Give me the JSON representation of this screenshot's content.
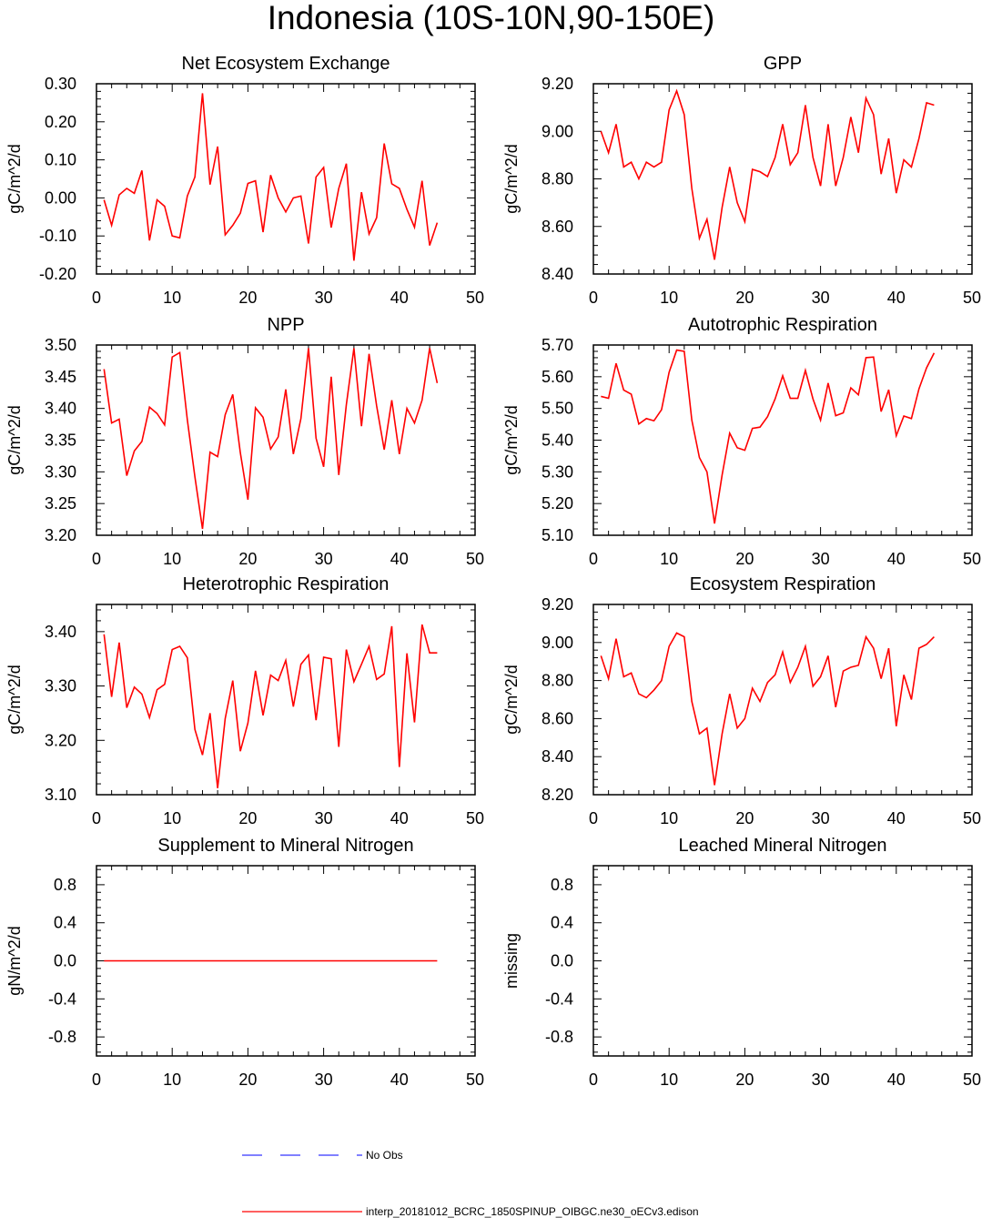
{
  "page_title": "Indonesia (10S-10N,90-150E)",
  "legend": {
    "obs_label": "No Obs",
    "model_label": "interp_20181012_BCRC_1850SPINUP_OIBGC.ne30_oECv3.edison",
    "obs_color": "#0000ff",
    "model_color": "#ff0000"
  },
  "chart_data": [
    {
      "type": "line",
      "title": "Net Ecosystem Exchange",
      "ylabel": "gC/m^2/d",
      "xlim": [
        0,
        50
      ],
      "ylim": [
        -0.2,
        0.3
      ],
      "x_ticks": [
        0,
        10,
        20,
        30,
        40,
        50
      ],
      "y_ticks": [
        -0.2,
        -0.1,
        0.0,
        0.1,
        0.2,
        0.3
      ],
      "y_tick_labels": [
        "-0.20",
        "-0.10",
        "0.00",
        "0.10",
        "0.20",
        "0.30"
      ],
      "x_tick_labels": [
        "0",
        "10",
        "20",
        "30",
        "40",
        "50"
      ],
      "series": [
        {
          "color": "#ff0000",
          "x": [
            1,
            2,
            3,
            4,
            5,
            6,
            7,
            8,
            9,
            10,
            11,
            12,
            13,
            14,
            15,
            16,
            17,
            18,
            19,
            20,
            21,
            22,
            23,
            24,
            25,
            26,
            27,
            28,
            29,
            30,
            31,
            32,
            33,
            34,
            35,
            36,
            37,
            38,
            39,
            40,
            41,
            42,
            43,
            44,
            45
          ],
          "values": [
            -0.005,
            -0.072,
            0.008,
            0.025,
            0.012,
            0.072,
            -0.112,
            -0.005,
            -0.022,
            -0.1,
            -0.105,
            0.005,
            0.055,
            0.275,
            0.035,
            0.135,
            -0.097,
            -0.072,
            -0.04,
            0.038,
            0.045,
            -0.09,
            0.06,
            0.0,
            -0.037,
            0.0,
            0.005,
            -0.12,
            0.055,
            0.08,
            -0.078,
            0.025,
            0.09,
            -0.165,
            0.015,
            -0.095,
            -0.052,
            0.143,
            0.037,
            0.025,
            -0.03,
            -0.077,
            0.045,
            -0.125,
            -0.065
          ]
        }
      ]
    },
    {
      "type": "line",
      "title": "GPP",
      "ylabel": "gC/m^2/d",
      "xlim": [
        0,
        50
      ],
      "ylim": [
        8.4,
        9.2
      ],
      "x_ticks": [
        0,
        10,
        20,
        30,
        40,
        50
      ],
      "y_ticks": [
        8.4,
        8.6,
        8.8,
        9.0,
        9.2
      ],
      "y_tick_labels": [
        "8.40",
        "8.60",
        "8.80",
        "9.00",
        "9.20"
      ],
      "x_tick_labels": [
        "0",
        "10",
        "20",
        "30",
        "40",
        "50"
      ],
      "series": [
        {
          "color": "#ff0000",
          "x": [
            1,
            2,
            3,
            4,
            5,
            6,
            7,
            8,
            9,
            10,
            11,
            12,
            13,
            14,
            15,
            16,
            17,
            18,
            19,
            20,
            21,
            22,
            23,
            24,
            25,
            26,
            27,
            28,
            29,
            30,
            31,
            32,
            33,
            34,
            35,
            36,
            37,
            38,
            39,
            40,
            41,
            42,
            43,
            44,
            45
          ],
          "values": [
            9.0,
            8.91,
            9.03,
            8.85,
            8.87,
            8.8,
            8.87,
            8.85,
            8.87,
            9.09,
            9.17,
            9.07,
            8.76,
            8.55,
            8.63,
            8.46,
            8.68,
            8.85,
            8.7,
            8.62,
            8.84,
            8.83,
            8.81,
            8.89,
            9.03,
            8.86,
            8.91,
            9.11,
            8.89,
            8.77,
            9.03,
            8.77,
            8.89,
            9.06,
            8.91,
            9.14,
            9.07,
            8.82,
            8.97,
            8.74,
            8.88,
            8.85,
            8.97,
            9.12,
            9.11
          ]
        }
      ]
    },
    {
      "type": "line",
      "title": "NPP",
      "ylabel": "gC/m^2/d",
      "xlim": [
        0,
        50
      ],
      "ylim": [
        3.2,
        3.5
      ],
      "x_ticks": [
        0,
        10,
        20,
        30,
        40,
        50
      ],
      "y_ticks": [
        3.2,
        3.25,
        3.3,
        3.35,
        3.4,
        3.45,
        3.5
      ],
      "y_tick_labels": [
        "3.20",
        "3.25",
        "3.30",
        "3.35",
        "3.40",
        "3.45",
        "3.50"
      ],
      "x_tick_labels": [
        "0",
        "10",
        "20",
        "30",
        "40",
        "50"
      ],
      "series": [
        {
          "color": "#ff0000",
          "x": [
            1,
            2,
            3,
            4,
            5,
            6,
            7,
            8,
            9,
            10,
            11,
            12,
            13,
            14,
            15,
            16,
            17,
            18,
            19,
            20,
            21,
            22,
            23,
            24,
            25,
            26,
            27,
            28,
            29,
            30,
            31,
            32,
            33,
            34,
            35,
            36,
            37,
            38,
            39,
            40,
            41,
            42,
            43,
            44,
            45
          ],
          "values": [
            3.462,
            3.377,
            3.383,
            3.294,
            3.333,
            3.348,
            3.402,
            3.392,
            3.374,
            3.481,
            3.488,
            3.382,
            3.292,
            3.21,
            3.331,
            3.324,
            3.39,
            3.422,
            3.33,
            3.256,
            3.401,
            3.386,
            3.336,
            3.355,
            3.43,
            3.328,
            3.384,
            3.495,
            3.353,
            3.308,
            3.45,
            3.295,
            3.406,
            3.495,
            3.372,
            3.486,
            3.404,
            3.335,
            3.413,
            3.328,
            3.4,
            3.377,
            3.413,
            3.495,
            3.44
          ]
        }
      ]
    },
    {
      "type": "line",
      "title": "Autotrophic Respiration",
      "ylabel": "gC/m^2/d",
      "xlim": [
        0,
        50
      ],
      "ylim": [
        5.1,
        5.7
      ],
      "x_ticks": [
        0,
        10,
        20,
        30,
        40,
        50
      ],
      "y_ticks": [
        5.1,
        5.2,
        5.3,
        5.4,
        5.5,
        5.6,
        5.7
      ],
      "y_tick_labels": [
        "5.10",
        "5.20",
        "5.30",
        "5.40",
        "5.50",
        "5.60",
        "5.70"
      ],
      "x_tick_labels": [
        "0",
        "10",
        "20",
        "30",
        "40",
        "50"
      ],
      "series": [
        {
          "color": "#ff0000",
          "x": [
            1,
            2,
            3,
            4,
            5,
            6,
            7,
            8,
            9,
            10,
            11,
            12,
            13,
            14,
            15,
            16,
            17,
            18,
            19,
            20,
            21,
            22,
            23,
            24,
            25,
            26,
            27,
            28,
            29,
            30,
            31,
            32,
            33,
            34,
            35,
            36,
            37,
            38,
            39,
            40,
            41,
            42,
            43,
            44,
            45
          ],
          "values": [
            5.538,
            5.532,
            5.642,
            5.558,
            5.545,
            5.451,
            5.468,
            5.461,
            5.496,
            5.614,
            5.684,
            5.68,
            5.463,
            5.345,
            5.3,
            5.137,
            5.29,
            5.422,
            5.376,
            5.368,
            5.437,
            5.441,
            5.474,
            5.53,
            5.603,
            5.532,
            5.532,
            5.62,
            5.53,
            5.463,
            5.58,
            5.477,
            5.486,
            5.565,
            5.543,
            5.66,
            5.662,
            5.49,
            5.559,
            5.414,
            5.476,
            5.468,
            5.562,
            5.628,
            5.675
          ]
        }
      ]
    },
    {
      "type": "line",
      "title": "Heterotrophic Respiration",
      "ylabel": "gC/m^2/d",
      "xlim": [
        0,
        50
      ],
      "ylim": [
        3.1,
        3.45
      ],
      "x_ticks": [
        0,
        10,
        20,
        30,
        40,
        50
      ],
      "y_ticks": [
        3.1,
        3.2,
        3.3,
        3.4
      ],
      "y_tick_labels": [
        "3.10",
        "3.20",
        "3.30",
        "3.40"
      ],
      "x_tick_labels": [
        "0",
        "10",
        "20",
        "30",
        "40",
        "50"
      ],
      "series": [
        {
          "color": "#ff0000",
          "x": [
            1,
            2,
            3,
            4,
            5,
            6,
            7,
            8,
            9,
            10,
            11,
            12,
            13,
            14,
            15,
            16,
            17,
            18,
            19,
            20,
            21,
            22,
            23,
            24,
            25,
            26,
            27,
            28,
            29,
            30,
            31,
            32,
            33,
            34,
            35,
            36,
            37,
            38,
            39,
            40,
            41,
            42,
            43,
            44,
            45
          ],
          "values": [
            3.395,
            3.28,
            3.38,
            3.26,
            3.298,
            3.285,
            3.242,
            3.293,
            3.303,
            3.367,
            3.373,
            3.352,
            3.22,
            3.173,
            3.25,
            3.112,
            3.24,
            3.31,
            3.18,
            3.232,
            3.328,
            3.246,
            3.32,
            3.31,
            3.347,
            3.262,
            3.34,
            3.357,
            3.237,
            3.353,
            3.35,
            3.188,
            3.367,
            3.308,
            3.34,
            3.373,
            3.312,
            3.322,
            3.41,
            3.151,
            3.36,
            3.233,
            3.413,
            3.361,
            3.361
          ]
        }
      ]
    },
    {
      "type": "line",
      "title": "Ecosystem Respiration",
      "ylabel": "gC/m^2/d",
      "xlim": [
        0,
        50
      ],
      "ylim": [
        8.2,
        9.2
      ],
      "x_ticks": [
        0,
        10,
        20,
        30,
        40,
        50
      ],
      "y_ticks": [
        8.2,
        8.4,
        8.6,
        8.8,
        9.0,
        9.2
      ],
      "y_tick_labels": [
        "8.20",
        "8.40",
        "8.60",
        "8.80",
        "9.00",
        "9.20"
      ],
      "x_tick_labels": [
        "0",
        "10",
        "20",
        "30",
        "40",
        "50"
      ],
      "series": [
        {
          "color": "#ff0000",
          "x": [
            1,
            2,
            3,
            4,
            5,
            6,
            7,
            8,
            9,
            10,
            11,
            12,
            13,
            14,
            15,
            16,
            17,
            18,
            19,
            20,
            21,
            22,
            23,
            24,
            25,
            26,
            27,
            28,
            29,
            30,
            31,
            32,
            33,
            34,
            35,
            36,
            37,
            38,
            39,
            40,
            41,
            42,
            43,
            44,
            45
          ],
          "values": [
            8.93,
            8.81,
            9.02,
            8.82,
            8.84,
            8.73,
            8.71,
            8.75,
            8.8,
            8.98,
            9.05,
            9.03,
            8.69,
            8.52,
            8.55,
            8.25,
            8.52,
            8.73,
            8.55,
            8.6,
            8.76,
            8.69,
            8.79,
            8.83,
            8.95,
            8.79,
            8.87,
            8.98,
            8.77,
            8.82,
            8.93,
            8.66,
            8.85,
            8.87,
            8.88,
            9.03,
            8.97,
            8.81,
            8.97,
            8.56,
            8.83,
            8.7,
            8.97,
            8.99,
            9.03
          ]
        }
      ]
    },
    {
      "type": "line",
      "title": "Supplement to Mineral Nitrogen",
      "ylabel": "gN/m^2/d",
      "xlim": [
        0,
        50
      ],
      "ylim": [
        -1.0,
        1.0
      ],
      "x_ticks": [
        0,
        10,
        20,
        30,
        40,
        50
      ],
      "y_ticks": [
        -0.8,
        -0.4,
        0.0,
        0.4,
        0.8
      ],
      "y_tick_labels": [
        "-0.8",
        "-0.4",
        "0.0",
        "0.4",
        "0.8"
      ],
      "x_tick_labels": [
        "0",
        "10",
        "20",
        "30",
        "40",
        "50"
      ],
      "series": [
        {
          "color": "#ff0000",
          "x": [
            1,
            45
          ],
          "values": [
            0.0,
            0.0
          ]
        }
      ]
    },
    {
      "type": "line",
      "title": "Leached Mineral Nitrogen",
      "ylabel": "missing",
      "xlim": [
        0,
        50
      ],
      "ylim": [
        -1.0,
        1.0
      ],
      "x_ticks": [
        0,
        10,
        20,
        30,
        40,
        50
      ],
      "y_ticks": [
        -0.8,
        -0.4,
        0.0,
        0.4,
        0.8
      ],
      "y_tick_labels": [
        "-0.8",
        "-0.4",
        "0.0",
        "0.4",
        "0.8"
      ],
      "x_tick_labels": [
        "0",
        "10",
        "20",
        "30",
        "40",
        "50"
      ],
      "series": []
    }
  ]
}
